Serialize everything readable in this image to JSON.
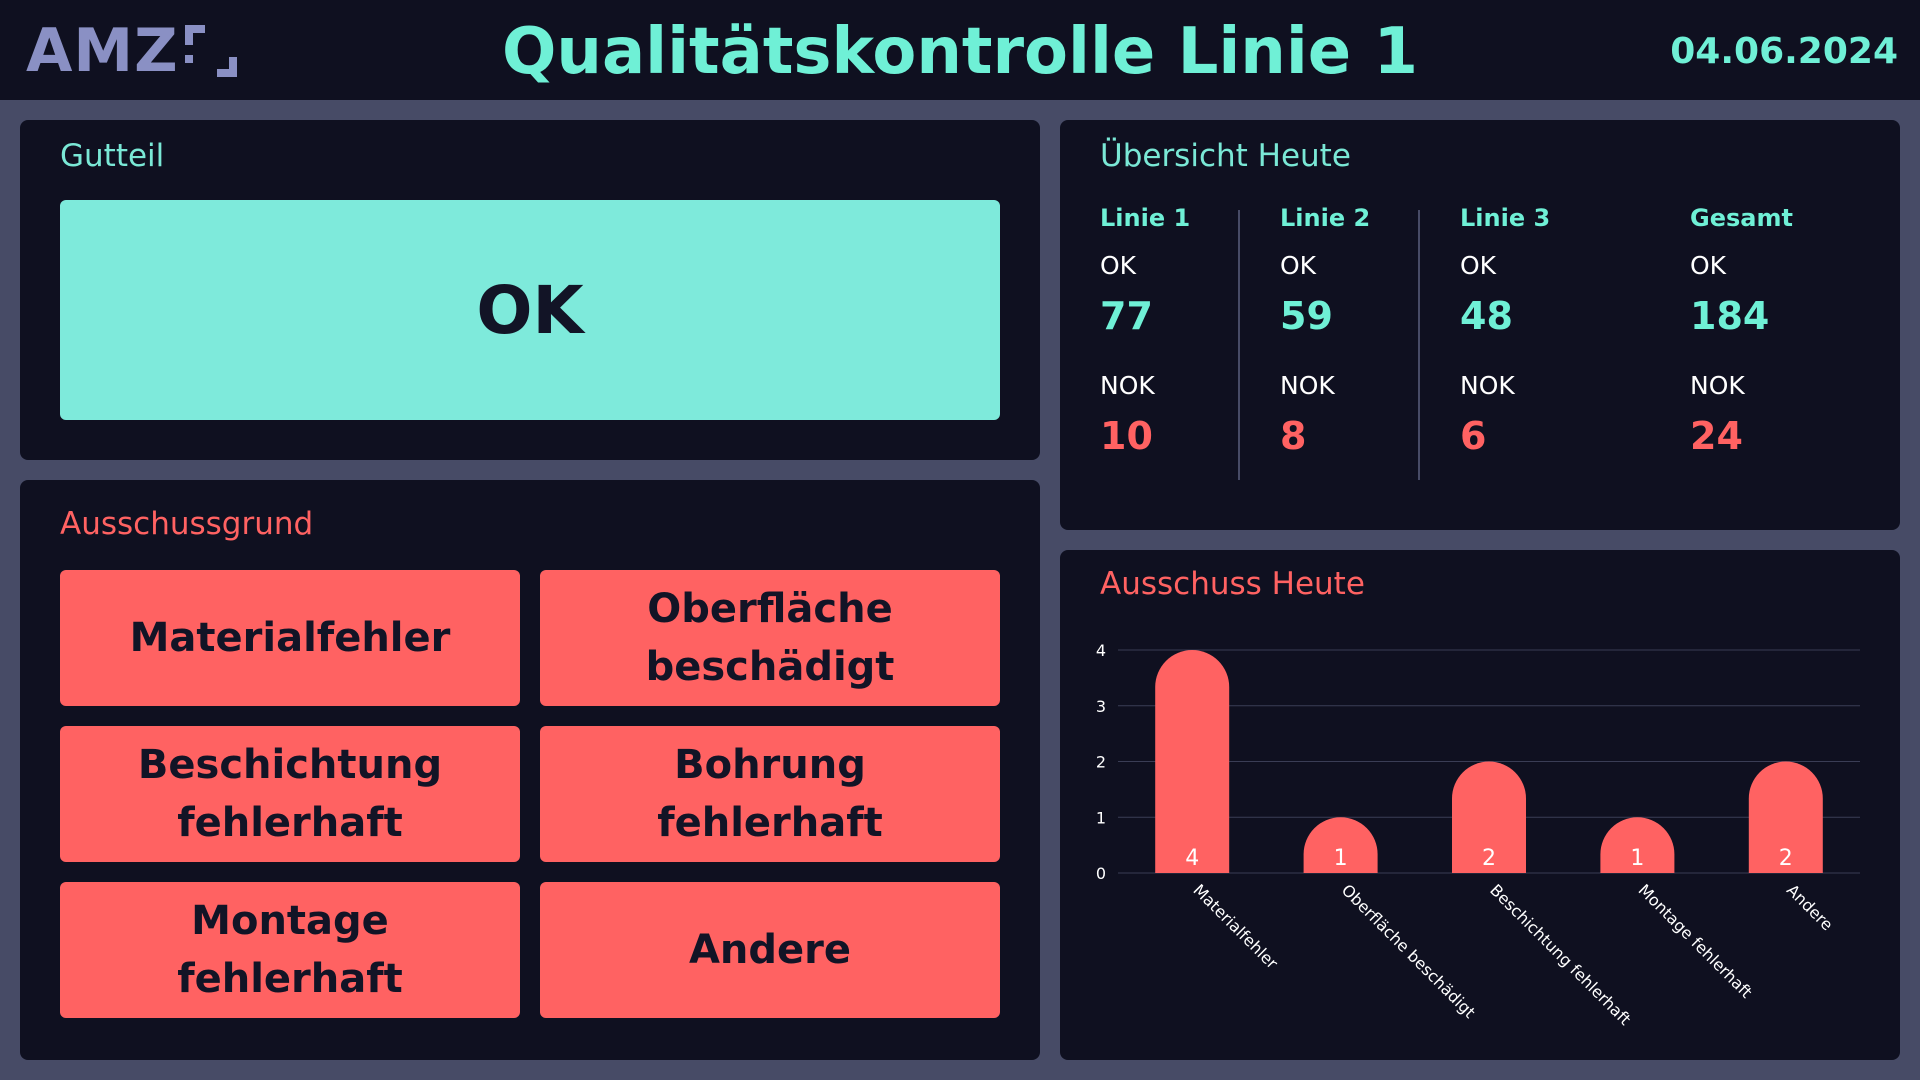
{
  "header": {
    "logo_text": "AMZ",
    "title": "Qualitätskontrolle Linie 1",
    "date": "04.06.2024"
  },
  "gutteil": {
    "title": "Gutteil",
    "ok_label": "OK"
  },
  "ausschussgrund": {
    "title": "Ausschussgrund",
    "buttons": [
      {
        "label": "Materialfehler"
      },
      {
        "label": "Oberfläche\nbeschädigt"
      },
      {
        "label": "Beschichtung\nfehlerhaft"
      },
      {
        "label": "Bohrung\nfehlerhaft"
      },
      {
        "label": "Montage\nfehlerhaft"
      },
      {
        "label": "Andere"
      }
    ]
  },
  "uebersicht": {
    "title": "Übersicht Heute",
    "ok_label": "OK",
    "nok_label": "NOK",
    "columns": [
      {
        "name": "Linie 1",
        "ok": "77",
        "nok": "10"
      },
      {
        "name": "Linie 2",
        "ok": "59",
        "nok": "8"
      },
      {
        "name": "Linie 3",
        "ok": "48",
        "nok": "6"
      },
      {
        "name": "Gesamt",
        "ok": "184",
        "nok": "24"
      }
    ]
  },
  "colors": {
    "accent": "#6ff0d6",
    "ok_button": "#7eeadb",
    "reject": "#ff6262",
    "panel": "#0f1020",
    "background": "#474b66"
  },
  "chart_data": {
    "type": "bar",
    "title": "Ausschuss Heute",
    "categories": [
      "Materialfehler",
      "Oberfläche beschädigt",
      "Beschichtung fehlerhaft",
      "Montage fehlerhaft",
      "Andere"
    ],
    "values": [
      4,
      1,
      2,
      1,
      2
    ],
    "ylim": [
      0,
      4
    ],
    "yticks": [
      "0",
      "1",
      "2",
      "3",
      "4"
    ],
    "data_labels": [
      "4",
      "1",
      "2",
      "1",
      "2"
    ],
    "grid": true,
    "legend": "none"
  }
}
